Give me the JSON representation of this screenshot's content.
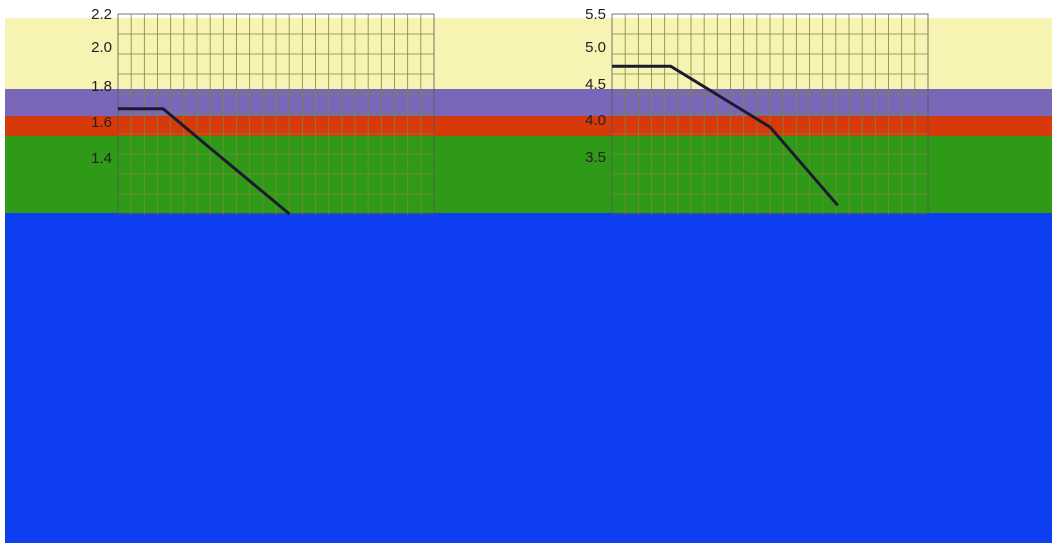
{
  "colors": {
    "band_yellow": "#f7f3b2",
    "band_purple": "#7b67b9",
    "band_red": "#d7390b",
    "band_green": "#2f9a18",
    "band_blue": "#0d3ff0",
    "line": "#1b1b2e"
  },
  "chart_data": [
    {
      "type": "line",
      "title": "",
      "xlabel": "",
      "ylabel": "",
      "yticks": [
        "2.2",
        "2.0",
        "1.8",
        "1.6",
        "1.4"
      ],
      "ylim": [
        1.3,
        2.25
      ],
      "grid": true,
      "series": [
        {
          "x": [
            0,
            1.0,
            2.0,
            3.8
          ],
          "y": [
            1.8,
            1.8,
            1.62,
            1.3
          ]
        }
      ]
    },
    {
      "type": "line",
      "title": "",
      "xlabel": "",
      "ylabel": "",
      "yticks": [
        "5.5",
        "5.0",
        "4.5",
        "4.0",
        "3.5"
      ],
      "ylim": [
        3.3,
        5.6
      ],
      "grid": true,
      "series": [
        {
          "x": [
            0,
            1.3,
            3.5,
            5.0
          ],
          "y": [
            5.0,
            5.0,
            4.3,
            3.4
          ]
        }
      ]
    }
  ]
}
